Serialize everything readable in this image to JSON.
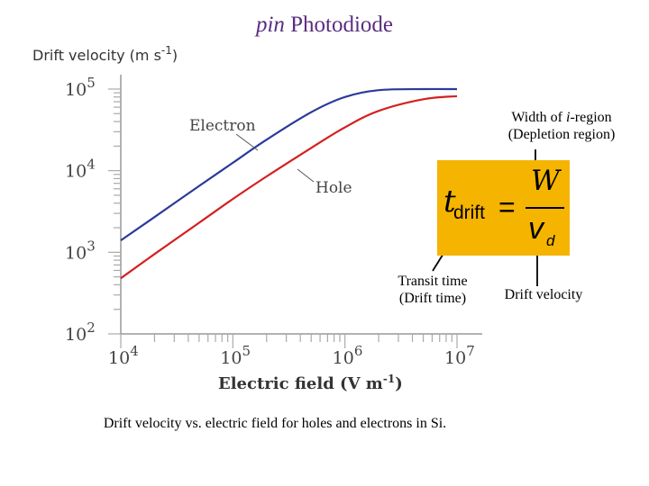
{
  "slide": {
    "title_italic": "pin",
    "title_rest": " Photodiode",
    "caption": "Drift velocity vs. electric field for holes and electrons in Si."
  },
  "annotations": {
    "width_line1_pre": "Width of ",
    "width_line1_italic": "i",
    "width_line1_post": "-region",
    "width_line2": "(Depletion region)",
    "transit_line1": "Transit time",
    "transit_line2": "(Drift time)",
    "drift_velocity": "Drift velocity"
  },
  "equation": {
    "t": "t",
    "t_sub": "drift",
    "equals": "=",
    "numerator": "W",
    "denominator": "v",
    "denominator_sub": "d"
  },
  "colors": {
    "electron": "#2b3a9a",
    "hole": "#d42020",
    "equation_box": "#f5b400",
    "title": "#5a2d82"
  },
  "chart_data": {
    "type": "line",
    "ylabel": "Drift velocity (m s-1)",
    "xlabel": "Electric field (V m-1)",
    "x_scale": "log",
    "y_scale": "log",
    "xlim": [
      10000,
      10000000
    ],
    "ylim": [
      100,
      150000
    ],
    "x_tick_labels": [
      {
        "value": 10000,
        "base": "10",
        "exp": "4"
      },
      {
        "value": 100000,
        "base": "10",
        "exp": "5"
      },
      {
        "value": 1000000,
        "base": "10",
        "exp": "6"
      },
      {
        "value": 10000000,
        "base": "10",
        "exp": "7"
      }
    ],
    "y_tick_labels": [
      {
        "value": 100,
        "base": "10",
        "exp": "2"
      },
      {
        "value": 1000,
        "base": "10",
        "exp": "3"
      },
      {
        "value": 10000,
        "base": "10",
        "exp": "4"
      },
      {
        "value": 100000,
        "base": "10",
        "exp": "5"
      }
    ],
    "series": [
      {
        "name": "Electron",
        "color": "#2b3a9a",
        "x": [
          10000,
          20000,
          50000,
          100000,
          200000,
          500000,
          1000000,
          2000000,
          5000000,
          10000000
        ],
        "y": [
          1400,
          2700,
          6500,
          12500,
          24000,
          52000,
          80000,
          97000,
          100000,
          100000
        ]
      },
      {
        "name": "Hole",
        "color": "#d42020",
        "x": [
          10000,
          20000,
          50000,
          100000,
          200000,
          500000,
          1000000,
          2000000,
          5000000,
          10000000
        ],
        "y": [
          480,
          950,
          2300,
          4500,
          8500,
          19000,
          34000,
          54000,
          75000,
          82000
        ]
      }
    ]
  }
}
